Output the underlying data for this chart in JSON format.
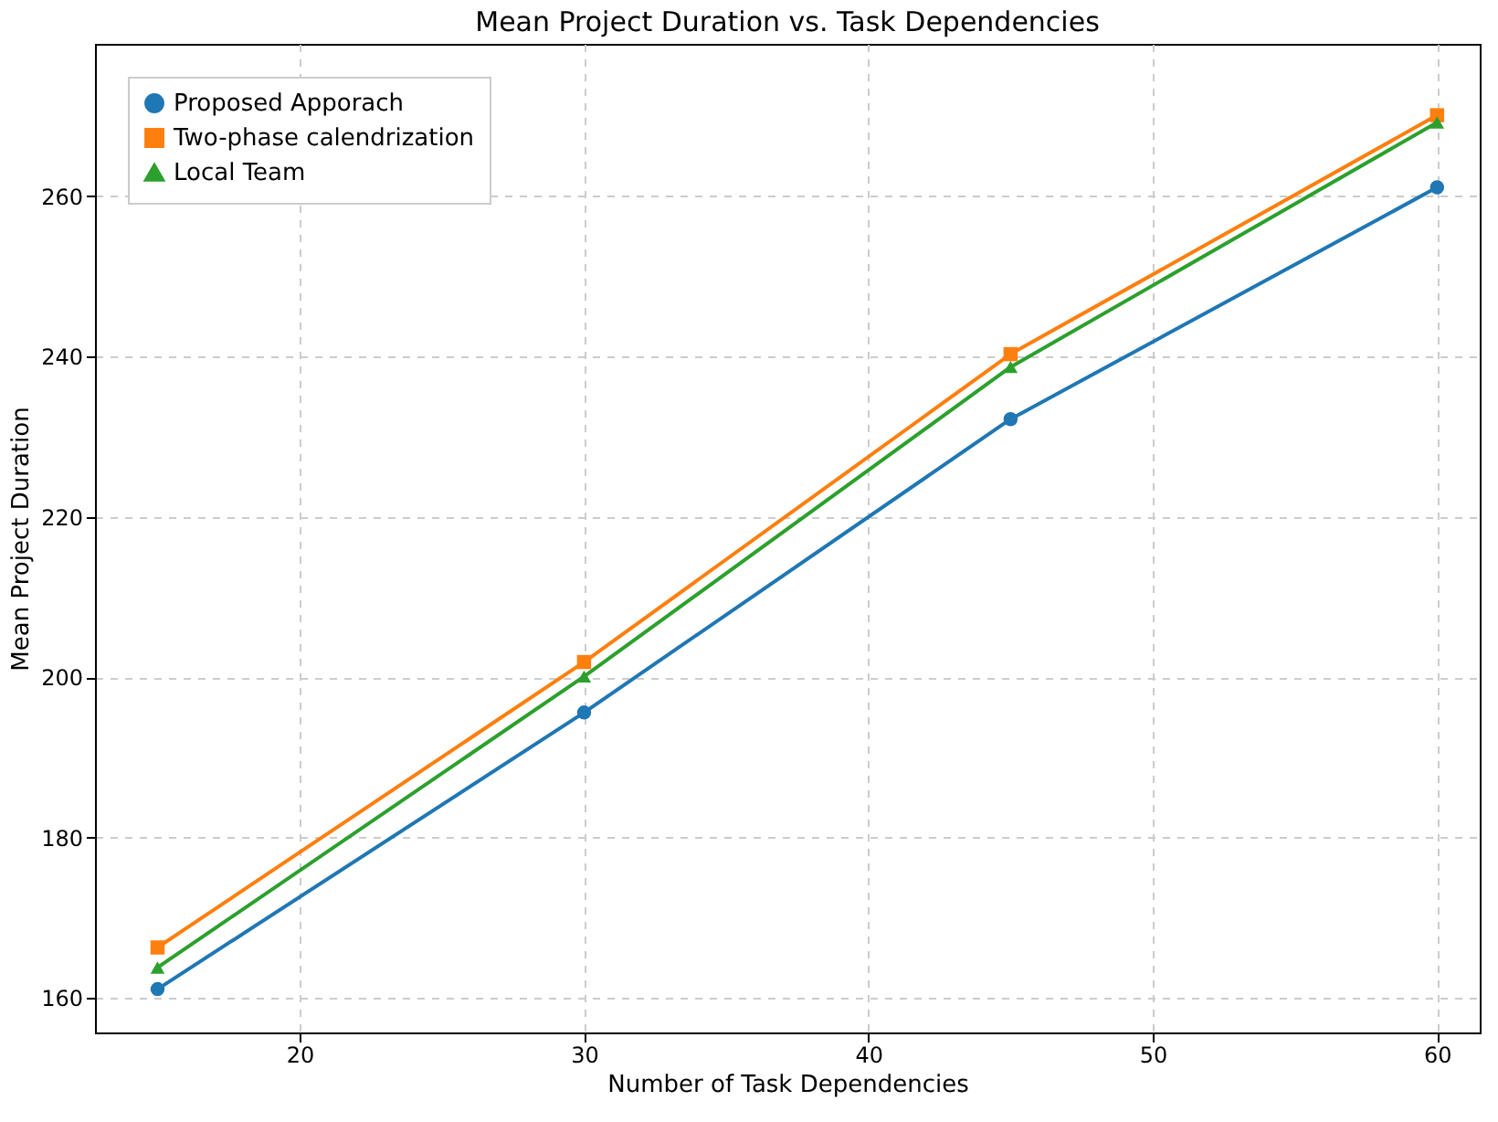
{
  "chart_data": {
    "type": "line",
    "title": "Mean Project Duration vs. Task Dependencies",
    "xlabel": "Number of Task Dependencies",
    "ylabel": "Mean Project Duration",
    "x": [
      15,
      30,
      45,
      60
    ],
    "series": [
      {
        "name": "Proposed Apporach",
        "color": "#1f77b4",
        "marker": "circle",
        "values": [
          161.1,
          195.6,
          232.2,
          261.1
        ]
      },
      {
        "name": "Two-phase calendrization",
        "color": "#ff7f0e",
        "marker": "square",
        "values": [
          166.3,
          201.9,
          240.3,
          270.1
        ]
      },
      {
        "name": "Local Team",
        "color": "#2ca02c",
        "marker": "triangle",
        "values": [
          163.8,
          200.1,
          238.7,
          269.2
        ]
      }
    ],
    "xlim": [
      12.8,
      61.5
    ],
    "xticks": [
      20,
      30,
      40,
      50,
      60
    ],
    "ylim": [
      155.7,
      279
    ],
    "yticks": [
      160,
      180,
      200,
      220,
      240,
      260
    ],
    "grid": true,
    "legend": "top left",
    "line_style": "solid"
  }
}
